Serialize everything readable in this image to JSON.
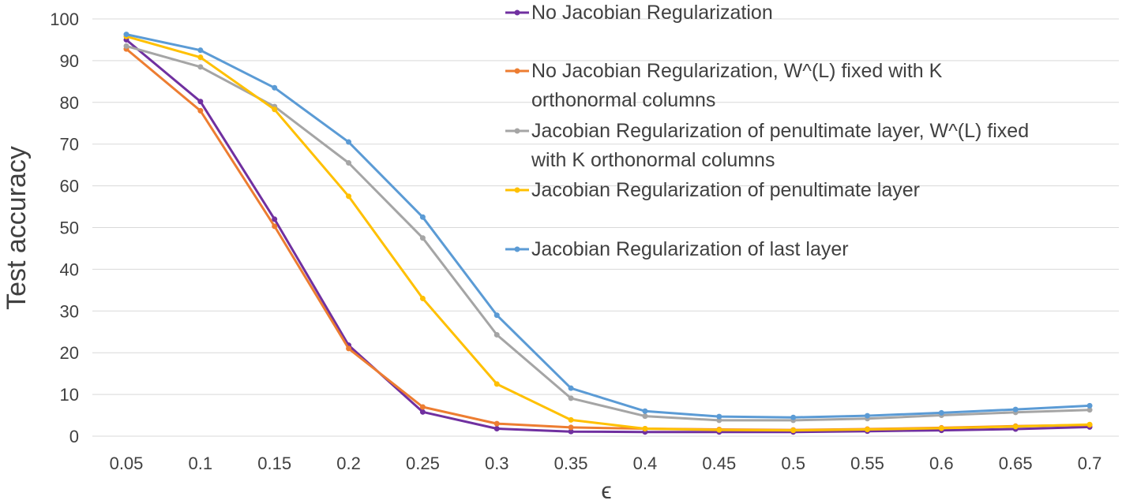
{
  "chart_data": {
    "type": "line",
    "title": "",
    "xlabel": "ϵ",
    "ylabel": "Test accuracy",
    "categories": [
      "0.05",
      "0.1",
      "0.15",
      "0.2",
      "0.25",
      "0.3",
      "0.35",
      "0.4",
      "0.45",
      "0.5",
      "0.55",
      "0.6",
      "0.65",
      "0.7"
    ],
    "ylim": [
      0,
      100
    ],
    "yticks": [
      "0",
      "10",
      "20",
      "30",
      "40",
      "50",
      "60",
      "70",
      "80",
      "90",
      "100"
    ],
    "grid": true,
    "legend_position": "top-right",
    "series": [
      {
        "name": "No Jacobian Regularization",
        "legend_lines": [
          "No Jacobian Regularization"
        ],
        "color": "#7030a0",
        "values": [
          95,
          80.2,
          52,
          21.8,
          5.8,
          1.8,
          1.1,
          1.0,
          1.0,
          1.0,
          1.2,
          1.4,
          1.7,
          2.2
        ]
      },
      {
        "name": "No Jacobian Regularization, W^(L) fixed with K orthonormal columns",
        "legend_lines": [
          "No Jacobian Regularization, W^(L) fixed with K",
          "orthonormal columns"
        ],
        "color": "#ed7d31",
        "values": [
          92.8,
          78,
          50.3,
          21,
          7,
          3,
          2.1,
          1.8,
          1.6,
          1.5,
          1.7,
          2.0,
          2.4,
          2.7
        ]
      },
      {
        "name": "Jacobian Regularization of penultimate layer, W^(L) fixed with K orthonormal columns",
        "legend_lines": [
          "Jacobian Regularization of penultimate layer, W^(L) fixed",
          "with K orthonormal columns"
        ],
        "color": "#a5a5a5",
        "values": [
          93.5,
          88.5,
          79,
          65.5,
          47.5,
          24.3,
          9.1,
          4.8,
          3.8,
          3.8,
          4.2,
          5.0,
          5.7,
          6.3
        ]
      },
      {
        "name": "Jacobian Regularization of penultimate layer",
        "legend_lines": [
          "Jacobian Regularization of penultimate layer"
        ],
        "color": "#ffc000",
        "values": [
          95.8,
          90.8,
          78.3,
          57.5,
          33,
          12.5,
          3.9,
          1.8,
          1.5,
          1.4,
          1.6,
          1.9,
          2.3,
          2.8
        ]
      },
      {
        "name": "Jacobian Regularization of last layer",
        "legend_lines": [
          "Jacobian Regularization of last layer"
        ],
        "color": "#5b9bd5",
        "values": [
          96.3,
          92.5,
          83.5,
          70.5,
          52.5,
          29,
          11.5,
          6.0,
          4.7,
          4.5,
          4.9,
          5.6,
          6.4,
          7.3
        ]
      }
    ]
  }
}
